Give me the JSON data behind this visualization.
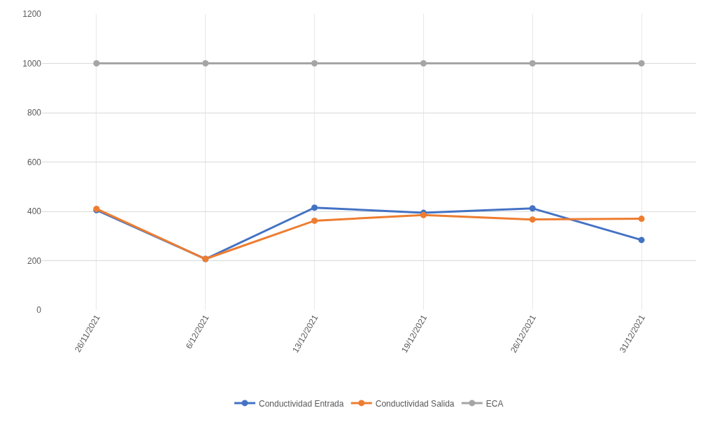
{
  "chart_data": {
    "type": "line",
    "categories": [
      "26/11/2021",
      "6/12/2021",
      "13/12/2021",
      "19/12/2021",
      "26/12/2021",
      "31/12/2021"
    ],
    "series": [
      {
        "name": "Conductividad Entrada",
        "color": "#4472c4",
        "values": [
          405,
          207,
          415,
          394,
          412,
          284
        ]
      },
      {
        "name": "Conductividad Salida",
        "color": "#ed7d31",
        "values": [
          410,
          207,
          362,
          385,
          367,
          370
        ]
      },
      {
        "name": "ECA",
        "color": "#a5a5a5",
        "values": [
          1000,
          1000,
          1000,
          1000,
          1000,
          1000
        ]
      }
    ],
    "ylim": [
      0,
      1200
    ],
    "yticks": [
      0,
      200,
      400,
      600,
      800,
      1000,
      1200
    ],
    "grid": true,
    "legend": "bottom",
    "marker": "circle",
    "line_style": "solid"
  }
}
